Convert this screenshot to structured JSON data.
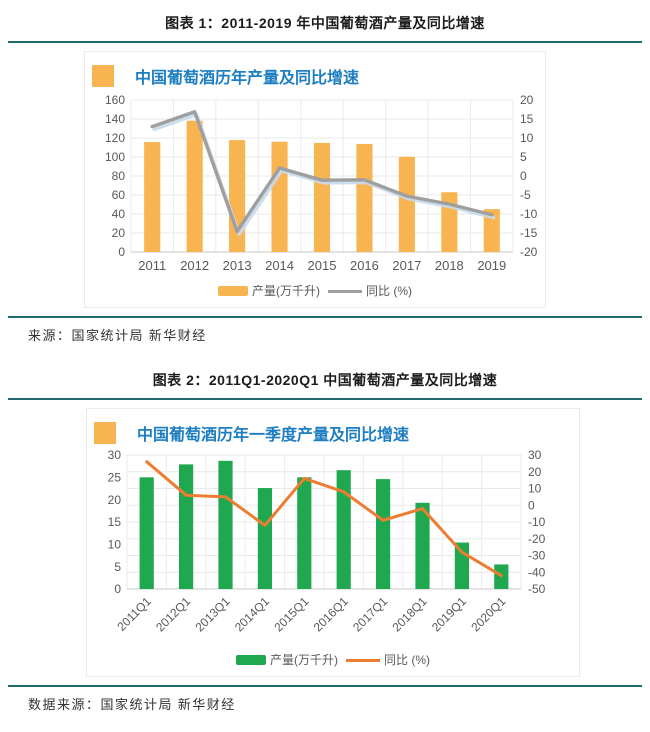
{
  "page": {
    "background": "#ffffff",
    "rule_color": "#1F6B70"
  },
  "figures": [
    {
      "caption": "图表 1：2011-2019 年中国葡萄酒产量及同比增速",
      "source": "来源：国家统计局 新华财经"
    },
    {
      "caption": "图表 2：2011Q1-2020Q1 中国葡萄酒产量及同比增速",
      "source": "数据来源：国家统计局 新华财经"
    }
  ],
  "chart_data": [
    {
      "type": "bar",
      "subtype": "combo-bar-line-dual-axis",
      "title": "中国葡萄酒历年产量及同比增速",
      "title_color": "#1E7EC2",
      "title_marker_color": "#F8B450",
      "categories": [
        "2011",
        "2012",
        "2013",
        "2014",
        "2015",
        "2016",
        "2017",
        "2018",
        "2019"
      ],
      "series": [
        {
          "name": "产量(万千升)",
          "type": "bar",
          "axis": "left",
          "color": "#F8B450",
          "values": [
            115.7,
            138.2,
            117.8,
            116.1,
            114.8,
            113.7,
            100.1,
            62.9,
            45.1
          ]
        },
        {
          "name": "同比 (%)",
          "type": "line",
          "axis": "right",
          "color": "#9F9F9F",
          "shadow_color": "#C7D9EC",
          "values": [
            13.0,
            16.9,
            -14.6,
            2.1,
            -1.1,
            -1.0,
            -5.3,
            -7.4,
            -10.2
          ]
        }
      ],
      "left_axis": {
        "min": 0,
        "max": 160,
        "step": 20
      },
      "right_axis": {
        "min": -20,
        "max": 20,
        "step": 5
      },
      "gridline_axis": "left",
      "grid": "horizontal+vertical",
      "legend_position": "bottom",
      "x_label_rotation": 0
    },
    {
      "type": "bar",
      "subtype": "combo-bar-line-dual-axis",
      "title": "中国葡萄酒历年一季度产量及同比增速",
      "title_color": "#1E7EC2",
      "title_marker_color": "#F8B450",
      "categories": [
        "2011Q1",
        "2012Q1",
        "2013Q1",
        "2014Q1",
        "2015Q1",
        "2016Q1",
        "2017Q1",
        "2018Q1",
        "2019Q1",
        "2020Q1"
      ],
      "series": [
        {
          "name": "产量(万千升)",
          "type": "bar",
          "axis": "left",
          "color": "#1FA84F",
          "values": [
            25.0,
            27.9,
            28.7,
            22.6,
            25.0,
            26.6,
            24.6,
            19.3,
            10.4,
            5.5
          ]
        },
        {
          "name": "同比 (%)",
          "type": "line",
          "axis": "right",
          "color": "#ED7D31",
          "values": [
            26,
            6,
            5,
            -12,
            16,
            8,
            -9,
            -2,
            -28,
            -42
          ]
        }
      ],
      "left_axis": {
        "min": 0,
        "max": 30,
        "step": 5
      },
      "right_axis": {
        "min": -50,
        "max": 30,
        "step": 10
      },
      "gridline_axis": "right",
      "grid": "horizontal+vertical",
      "legend_position": "bottom",
      "x_label_rotation": -45
    }
  ]
}
